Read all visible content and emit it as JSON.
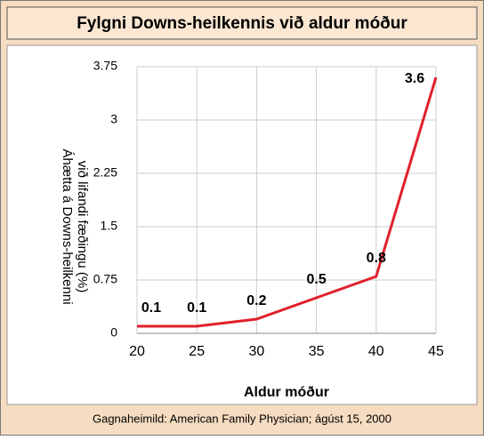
{
  "chart_data": {
    "type": "line",
    "title": "Fylgni Downs-heilkennis við aldur móður",
    "x_label": "Aldur móður",
    "y_label": [
      "Áhætta á Downs-heilkenni",
      "við lifandi fæðingu (%)"
    ],
    "source": "Gagnaheimild: American Family Physician; ágúst 15, 2000",
    "x": [
      20,
      25,
      30,
      35,
      40,
      45
    ],
    "series": [
      {
        "color": "#e0202a",
        "values": [
          0.1,
          0.1,
          0.2,
          0.5,
          0.8,
          3.6
        ]
      }
    ],
    "xlim": [
      20,
      45
    ],
    "xticks": [
      20,
      25,
      30,
      35,
      40,
      45
    ],
    "ylim": [
      0,
      3.75
    ],
    "yticks": [
      0,
      0.75,
      1.5,
      2.25,
      3,
      3.75
    ],
    "grid": true
  }
}
